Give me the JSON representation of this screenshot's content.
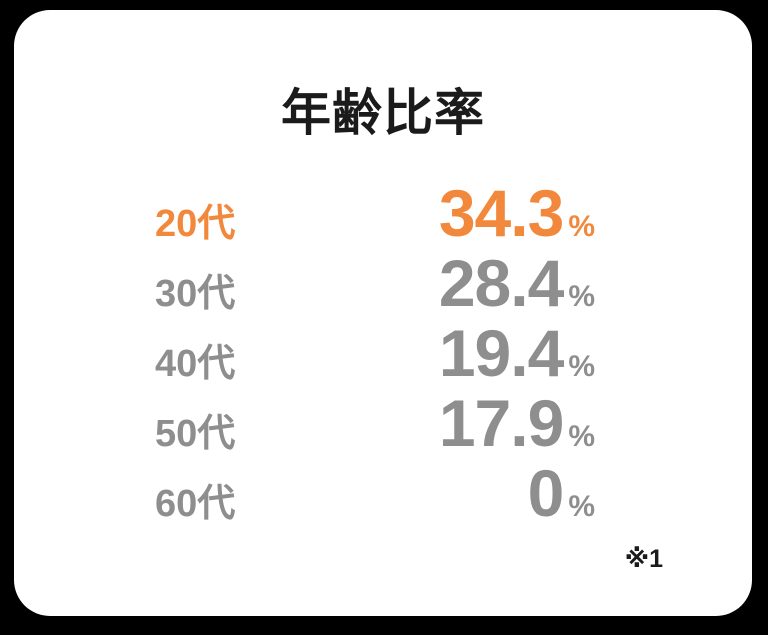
{
  "page": {
    "background_color": "#000000"
  },
  "card": {
    "background_color": "#FFFFFF",
    "title": "年齢比率",
    "footnote": "※1"
  },
  "colors": {
    "highlight_orange": "#F2883C",
    "muted_gray": "#8E8E8E",
    "text_dark": "#1B1B1B"
  },
  "rows": [
    {
      "label": "20代",
      "value": "34.3",
      "unit": "%",
      "highlighted": true
    },
    {
      "label": "30代",
      "value": "28.4",
      "unit": "%",
      "highlighted": false
    },
    {
      "label": "40代",
      "value": "19.4",
      "unit": "%",
      "highlighted": false
    },
    {
      "label": "50代",
      "value": "17.9",
      "unit": "%",
      "highlighted": false
    },
    {
      "label": "60代",
      "value": "0",
      "unit": "%",
      "highlighted": false
    }
  ],
  "chart_data": {
    "type": "table",
    "title": "年齢比率",
    "categories": [
      "20代",
      "30代",
      "40代",
      "50代",
      "60代"
    ],
    "values": [
      34.3,
      28.4,
      19.4,
      17.9,
      0
    ],
    "unit": "%",
    "annotations": [
      "※1"
    ],
    "highlight": {
      "category": "20代",
      "value": 34.3,
      "color": "#F2883C"
    },
    "value_color": "#8E8E8E",
    "legend_position": "none",
    "grid": false
  }
}
